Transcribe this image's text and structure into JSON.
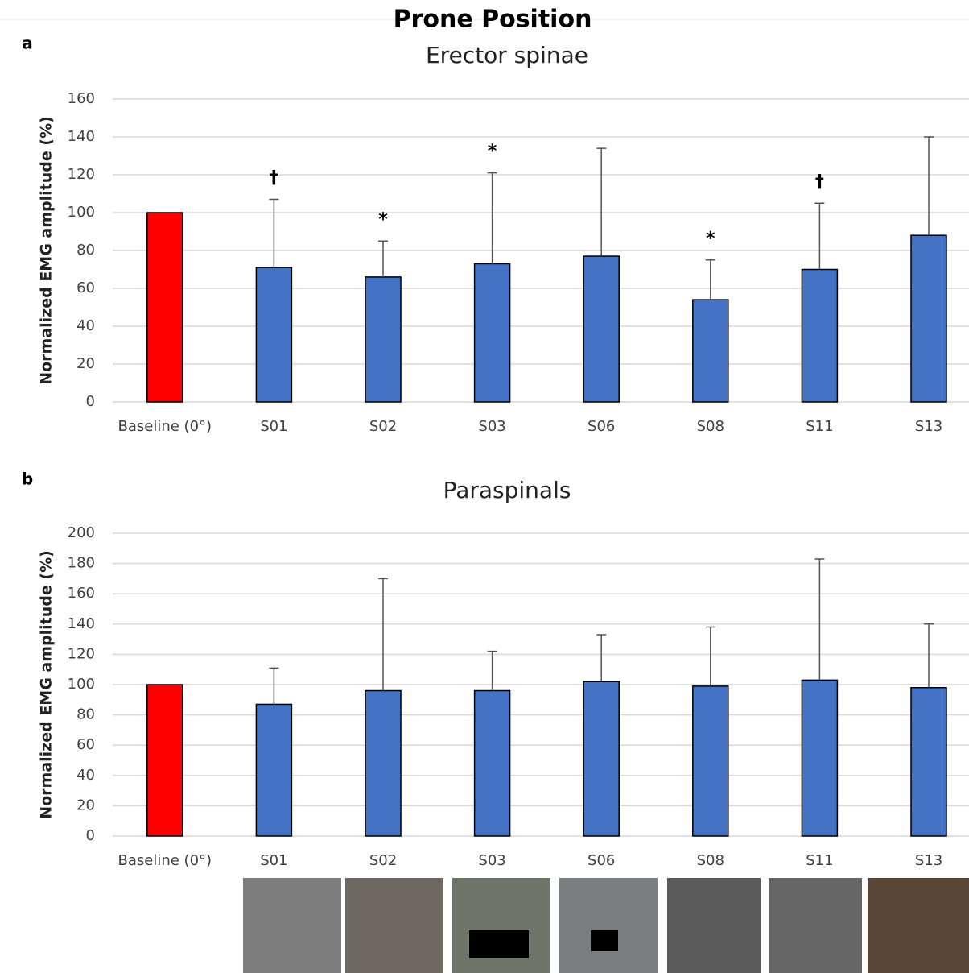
{
  "figure_title": "Prone Position",
  "chart_data": [
    {
      "type": "bar",
      "panel_label": "a",
      "title": "Erector spinae",
      "y_label": "Normalized EMG amplitude (%)",
      "categories": [
        "Baseline (0°)",
        "S01",
        "S02",
        "S03",
        "S06",
        "S08",
        "S11",
        "S13"
      ],
      "values": [
        100,
        71,
        66,
        73,
        77,
        54,
        70,
        88
      ],
      "errors": [
        null,
        36,
        19,
        48,
        57,
        21,
        35,
        52
      ],
      "annotations": [
        null,
        "†",
        "*",
        "*",
        null,
        "*",
        "†",
        null
      ],
      "colors": [
        "#ff0000",
        "#4472c4",
        "#4472c4",
        "#4472c4",
        "#4472c4",
        "#4472c4",
        "#4472c4",
        "#4472c4"
      ],
      "ylim": [
        0,
        160
      ],
      "yticks": [
        0,
        20,
        40,
        60,
        80,
        100,
        120,
        140,
        160
      ],
      "grid": true
    },
    {
      "type": "bar",
      "panel_label": "b",
      "title": "Paraspinals",
      "y_label": "Normalized EMG amplitude (%)",
      "categories": [
        "Baseline (0°)",
        "S01",
        "S02",
        "S03",
        "S06",
        "S08",
        "S11",
        "S13"
      ],
      "values": [
        100,
        87,
        96,
        96,
        102,
        99,
        103,
        98
      ],
      "errors": [
        null,
        24,
        74,
        26,
        31,
        39,
        80,
        42
      ],
      "colors": [
        "#ff0000",
        "#4472c4",
        "#4472c4",
        "#4472c4",
        "#4472c4",
        "#4472c4",
        "#4472c4",
        "#4472c4"
      ],
      "ylim": [
        0,
        200
      ],
      "yticks": [
        0,
        20,
        40,
        60,
        80,
        100,
        120,
        140,
        160,
        180,
        200
      ],
      "grid": true
    }
  ]
}
